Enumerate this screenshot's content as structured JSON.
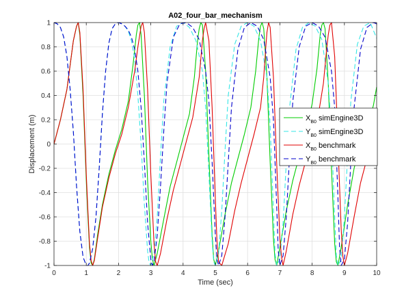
{
  "chart_data": {
    "type": "line",
    "title": "A02_four_bar_mechanism",
    "xlabel": "Time (sec)",
    "ylabel": "Displacement (m)",
    "xlim": [
      0,
      10
    ],
    "ylim": [
      -1,
      1
    ],
    "xticks": [
      "0",
      "1",
      "2",
      "3",
      "4",
      "5",
      "6",
      "7",
      "8",
      "9",
      "10"
    ],
    "yticks": [
      "-1",
      "-0.8",
      "-0.6",
      "-0.4",
      "-0.2",
      "0",
      "0.2",
      "0.4",
      "0.6",
      "0.8",
      "1"
    ],
    "grid": true,
    "legend_position": "right",
    "series": [
      {
        "name": "X_B0 simEngine3D",
        "legend_main": "X",
        "legend_sub": "B0",
        "legend_rest": " simEngine3D",
        "color": "#00cc00",
        "style": "solid",
        "x": [
          0,
          0.2,
          0.4,
          0.6,
          0.7,
          0.75,
          0.8,
          0.9,
          1.0,
          1.05,
          1.1,
          1.15,
          1.2,
          1.25,
          1.35,
          1.5,
          1.7,
          1.9,
          2.1,
          2.3,
          2.45,
          2.55,
          2.6,
          2.65,
          2.7,
          2.8,
          2.9,
          3.0,
          3.05,
          3.1,
          3.2,
          3.4,
          3.6,
          3.8,
          4.0,
          4.2,
          4.35,
          4.45,
          4.5,
          4.55,
          4.6,
          4.7,
          4.8,
          4.9,
          4.95,
          5.0,
          5.1,
          5.3,
          5.5,
          5.7,
          5.9,
          6.1,
          6.25,
          6.35,
          6.4,
          6.45,
          6.5,
          6.6,
          6.7,
          6.8,
          6.85,
          6.9,
          7.0,
          7.2,
          7.4,
          7.6,
          7.8,
          8.0,
          8.15,
          8.25,
          8.3,
          8.35,
          8.4,
          8.5,
          8.6,
          8.7,
          8.75,
          8.8,
          8.9,
          9.1,
          9.3,
          9.5,
          9.7,
          9.9,
          10.0
        ],
        "y": [
          0,
          0.2,
          0.45,
          0.85,
          0.97,
          1.0,
          0.9,
          0.4,
          -0.3,
          -0.6,
          -0.85,
          -0.98,
          -1.0,
          -0.95,
          -0.75,
          -0.5,
          -0.25,
          -0.05,
          0.12,
          0.35,
          0.65,
          0.9,
          0.98,
          1.0,
          0.9,
          0.4,
          -0.3,
          -0.8,
          -0.95,
          -1.0,
          -0.9,
          -0.62,
          -0.35,
          -0.15,
          0.05,
          0.25,
          0.55,
          0.85,
          0.95,
          1.0,
          0.98,
          0.6,
          -0.1,
          -0.75,
          -0.95,
          -1.0,
          -0.88,
          -0.58,
          -0.32,
          -0.12,
          0.08,
          0.3,
          0.6,
          0.88,
          0.97,
          1.0,
          0.95,
          0.55,
          -0.15,
          -0.78,
          -0.95,
          -1.0,
          -0.85,
          -0.55,
          -0.3,
          -0.1,
          0.1,
          0.33,
          0.62,
          0.9,
          0.98,
          1.0,
          0.95,
          0.5,
          -0.2,
          -0.82,
          -0.97,
          -1.0,
          -0.85,
          -0.5,
          -0.2,
          0.0,
          0.12,
          0.32,
          0.47
        ]
      },
      {
        "name": "Y_B0 simEngine3D",
        "legend_main": "Y",
        "legend_sub": "B0",
        "legend_rest": " simEngine3D",
        "color": "#33e6e6",
        "style": "dashed",
        "x": [
          0,
          0.1,
          0.2,
          0.3,
          0.4,
          0.5,
          0.6,
          0.7,
          0.8,
          0.9,
          1.0,
          1.05,
          1.1,
          1.2,
          1.3,
          1.4,
          1.5,
          1.6,
          1.7,
          1.8,
          1.9,
          2.0,
          2.1,
          2.2,
          2.3,
          2.4,
          2.5,
          2.6,
          2.7,
          2.8,
          2.9,
          2.95,
          3.0,
          3.1,
          3.2,
          3.3,
          3.4,
          3.6,
          3.8,
          4.0,
          4.2,
          4.4,
          4.6,
          4.7,
          4.8,
          4.9,
          4.95,
          5.0,
          5.1,
          5.2,
          5.3,
          5.4,
          5.6,
          5.8,
          6.0,
          6.2,
          6.4,
          6.6,
          6.7,
          6.8,
          6.85,
          6.9,
          7.0,
          7.1,
          7.2,
          7.3,
          7.5,
          7.7,
          7.9,
          8.1,
          8.3,
          8.5,
          8.6,
          8.7,
          8.75,
          8.8,
          8.9,
          9.0,
          9.1,
          9.2,
          9.4,
          9.6,
          9.8,
          10.0
        ],
        "y": [
          1.0,
          0.99,
          0.96,
          0.88,
          0.72,
          0.45,
          0.1,
          -0.35,
          -0.72,
          -0.93,
          -1.0,
          -1.0,
          -0.98,
          -0.86,
          -0.6,
          -0.2,
          0.25,
          0.6,
          0.83,
          0.95,
          0.99,
          1.0,
          0.99,
          0.97,
          0.93,
          0.85,
          0.7,
          0.4,
          0.0,
          -0.5,
          -0.88,
          -0.98,
          -1.0,
          -0.9,
          -0.6,
          -0.1,
          0.35,
          0.8,
          0.97,
          1.0,
          0.96,
          0.85,
          0.6,
          0.3,
          -0.25,
          -0.8,
          -0.97,
          -1.0,
          -0.9,
          -0.55,
          -0.05,
          0.4,
          0.82,
          0.97,
          1.0,
          0.97,
          0.85,
          0.55,
          0.15,
          -0.55,
          -0.9,
          -1.0,
          -0.95,
          -0.65,
          -0.15,
          0.3,
          0.78,
          0.96,
          1.0,
          0.97,
          0.86,
          0.5,
          0.1,
          -0.6,
          -0.92,
          -1.0,
          -0.95,
          -0.6,
          -0.1,
          0.35,
          0.82,
          0.97,
          1.0,
          0.87
        ]
      },
      {
        "name": "X_B0 benchmark",
        "legend_main": "X",
        "legend_sub": "B0",
        "legend_rest": " benchmark",
        "color": "#e00000",
        "style": "solid",
        "x": [
          0,
          0.2,
          0.4,
          0.6,
          0.7,
          0.75,
          0.8,
          0.9,
          1.0,
          1.05,
          1.1,
          1.15,
          1.2,
          1.25,
          1.35,
          1.5,
          1.7,
          1.9,
          2.1,
          2.3,
          2.5,
          2.6,
          2.7,
          2.75,
          2.8,
          2.9,
          3.0,
          3.1,
          3.15,
          3.2,
          3.3,
          3.5,
          3.7,
          3.9,
          4.1,
          4.3,
          4.5,
          4.6,
          4.65,
          4.7,
          4.8,
          4.9,
          5.0,
          5.05,
          5.1,
          5.2,
          5.4,
          5.6,
          5.8,
          6.0,
          6.2,
          6.4,
          6.5,
          6.55,
          6.6,
          6.65,
          6.7,
          6.8,
          6.9,
          7.0,
          7.05,
          7.1,
          7.2,
          7.4,
          7.6,
          7.8,
          8.0,
          8.2,
          8.35,
          8.45,
          8.5,
          8.55,
          8.6,
          8.7,
          8.8,
          8.9,
          8.95,
          9.0,
          9.1,
          9.3,
          9.5,
          9.7,
          9.9,
          10.0
        ],
        "y": [
          0,
          0.2,
          0.45,
          0.85,
          0.97,
          1.0,
          0.92,
          0.45,
          -0.25,
          -0.55,
          -0.82,
          -0.96,
          -1.0,
          -0.96,
          -0.78,
          -0.52,
          -0.28,
          -0.08,
          0.08,
          0.3,
          0.6,
          0.8,
          0.97,
          1.0,
          0.92,
          0.45,
          -0.25,
          -0.82,
          -0.97,
          -1.0,
          -0.9,
          -0.62,
          -0.38,
          -0.18,
          0.02,
          0.22,
          0.55,
          0.85,
          0.95,
          1.0,
          0.85,
          0.3,
          -0.45,
          -0.8,
          -0.97,
          -1.0,
          -0.82,
          -0.55,
          -0.32,
          -0.12,
          0.08,
          0.3,
          0.55,
          0.75,
          0.92,
          1.0,
          0.96,
          0.55,
          -0.15,
          -0.78,
          -0.93,
          -1.0,
          -0.88,
          -0.58,
          -0.34,
          -0.14,
          0.05,
          0.25,
          0.5,
          0.78,
          0.9,
          0.98,
          1.0,
          0.72,
          0.0,
          -0.7,
          -0.92,
          -1.0,
          -0.9,
          -0.6,
          -0.32,
          -0.12,
          0.06,
          0.18
        ]
      },
      {
        "name": "Y_B0 benchmark",
        "legend_main": "Y",
        "legend_sub": "B0",
        "legend_rest": " benchmark",
        "color": "#0000cc",
        "style": "dashed",
        "x": [
          0,
          0.1,
          0.2,
          0.3,
          0.4,
          0.5,
          0.6,
          0.7,
          0.8,
          0.9,
          1.0,
          1.05,
          1.1,
          1.2,
          1.3,
          1.4,
          1.5,
          1.6,
          1.7,
          1.8,
          1.9,
          2.0,
          2.1,
          2.2,
          2.3,
          2.4,
          2.5,
          2.6,
          2.7,
          2.8,
          2.9,
          3.0,
          3.05,
          3.1,
          3.2,
          3.3,
          3.4,
          3.5,
          3.7,
          3.9,
          4.1,
          4.3,
          4.5,
          4.7,
          4.8,
          4.9,
          5.0,
          5.05,
          5.1,
          5.2,
          5.3,
          5.4,
          5.5,
          5.7,
          5.9,
          6.1,
          6.3,
          6.5,
          6.7,
          6.8,
          6.9,
          6.95,
          7.0,
          7.1,
          7.2,
          7.3,
          7.4,
          7.6,
          7.8,
          8.0,
          8.2,
          8.4,
          8.6,
          8.7,
          8.8,
          8.85,
          8.9,
          9.0,
          9.1,
          9.2,
          9.3,
          9.5,
          9.7,
          9.9,
          10.0
        ],
        "y": [
          1.0,
          0.99,
          0.96,
          0.88,
          0.72,
          0.45,
          0.1,
          -0.35,
          -0.72,
          -0.93,
          -1.0,
          -1.0,
          -0.98,
          -0.86,
          -0.6,
          -0.2,
          0.25,
          0.6,
          0.83,
          0.95,
          0.99,
          1.0,
          0.99,
          0.97,
          0.94,
          0.88,
          0.78,
          0.6,
          0.3,
          -0.15,
          -0.65,
          -0.95,
          -1.0,
          -0.97,
          -0.75,
          -0.35,
          0.1,
          0.5,
          0.88,
          0.99,
          1.0,
          0.96,
          0.86,
          0.6,
          0.35,
          -0.15,
          -0.75,
          -0.95,
          -1.0,
          -0.92,
          -0.6,
          -0.15,
          0.3,
          0.78,
          0.96,
          1.0,
          0.97,
          0.86,
          0.55,
          0.2,
          -0.5,
          -0.88,
          -1.0,
          -0.92,
          -0.6,
          -0.1,
          0.35,
          0.8,
          0.97,
          1.0,
          0.97,
          0.88,
          0.6,
          0.3,
          -0.45,
          -0.85,
          -1.0,
          -0.95,
          -0.65,
          -0.15,
          0.3,
          0.78,
          0.96,
          1.0,
          0.99
        ]
      }
    ]
  }
}
